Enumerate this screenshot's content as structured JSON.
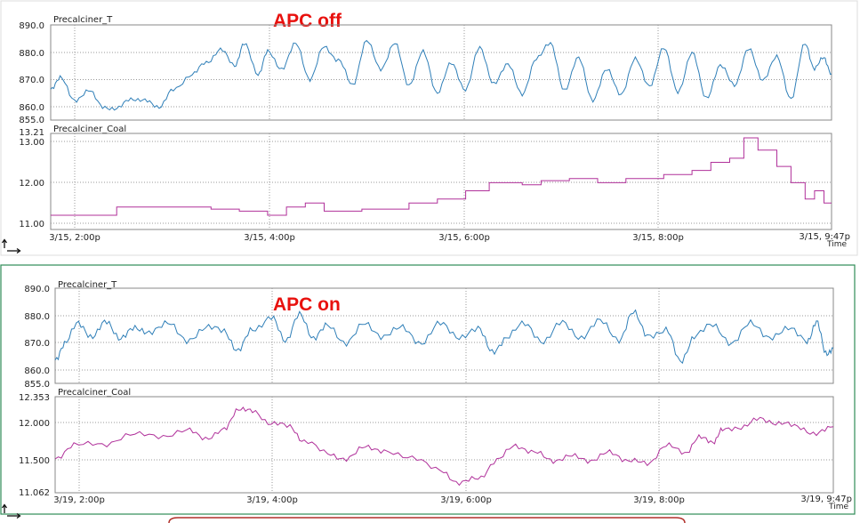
{
  "chart_data": [
    {
      "type": "line",
      "panel": "APC off",
      "banner": "APC off",
      "x_ticks": [
        "3/15, 2:00p",
        "3/15, 4:00p",
        "3/15, 6:00p",
        "3/15, 8:00p",
        "3/15, 9:47p"
      ],
      "x_axis_label": "Time",
      "x_range_hours": [
        13.5,
        21.78
      ],
      "subplots": [
        {
          "name": "Precalciner_T",
          "series_color": "#2f7fb8",
          "ylim": [
            855.0,
            890.0
          ],
          "ytick_labels": [
            "890.0",
            "880.0",
            "870.0",
            "860.0",
            "855.0"
          ],
          "ytick_values": [
            890.0,
            880.0,
            870.0,
            860.0,
            855.0
          ],
          "anchors": [
            [
              13.5,
              866
            ],
            [
              13.6,
              871
            ],
            [
              13.75,
              862
            ],
            [
              13.9,
              866
            ],
            [
              14.05,
              860
            ],
            [
              14.2,
              859
            ],
            [
              14.35,
              863
            ],
            [
              14.5,
              862
            ],
            [
              14.65,
              860
            ],
            [
              14.8,
              866
            ],
            [
              15.0,
              872
            ],
            [
              15.15,
              876
            ],
            [
              15.3,
              881
            ],
            [
              15.45,
              875
            ],
            [
              15.55,
              883
            ],
            [
              15.7,
              872
            ],
            [
              15.8,
              880
            ],
            [
              15.95,
              874
            ],
            [
              16.1,
              883
            ],
            [
              16.25,
              870
            ],
            [
              16.4,
              882
            ],
            [
              16.55,
              877
            ],
            [
              16.7,
              868
            ],
            [
              16.85,
              884
            ],
            [
              17.0,
              874
            ],
            [
              17.15,
              883
            ],
            [
              17.3,
              868
            ],
            [
              17.45,
              880
            ],
            [
              17.6,
              865
            ],
            [
              17.75,
              876
            ],
            [
              17.9,
              866
            ],
            [
              18.05,
              882
            ],
            [
              18.2,
              868
            ],
            [
              18.35,
              876
            ],
            [
              18.5,
              864
            ],
            [
              18.65,
              878
            ],
            [
              18.8,
              883
            ],
            [
              18.95,
              866
            ],
            [
              19.1,
              878
            ],
            [
              19.25,
              862
            ],
            [
              19.4,
              874
            ],
            [
              19.55,
              864
            ],
            [
              19.7,
              878
            ],
            [
              19.85,
              867
            ],
            [
              20.0,
              882
            ],
            [
              20.15,
              865
            ],
            [
              20.3,
              880
            ],
            [
              20.45,
              863
            ],
            [
              20.6,
              875
            ],
            [
              20.75,
              868
            ],
            [
              20.9,
              881
            ],
            [
              21.05,
              870
            ],
            [
              21.2,
              878
            ],
            [
              21.35,
              863
            ],
            [
              21.5,
              883
            ],
            [
              21.6,
              874
            ],
            [
              21.7,
              878
            ],
            [
              21.78,
              872
            ]
          ]
        },
        {
          "name": "Precalciner_Coal",
          "series_color": "#b0309a",
          "ylim": [
            10.85,
            13.21
          ],
          "ytick_labels": [
            "13.21",
            "13.00",
            "12.00",
            "11.00"
          ],
          "ytick_values": [
            13.21,
            13.0,
            12.0,
            11.0
          ],
          "steps": [
            [
              13.5,
              11.2
            ],
            [
              14.2,
              11.4
            ],
            [
              15.2,
              11.35
            ],
            [
              15.5,
              11.3
            ],
            [
              15.8,
              11.2
            ],
            [
              16.0,
              11.4
            ],
            [
              16.2,
              11.5
            ],
            [
              16.4,
              11.3
            ],
            [
              16.8,
              11.35
            ],
            [
              17.3,
              11.5
            ],
            [
              17.6,
              11.6
            ],
            [
              17.9,
              11.8
            ],
            [
              18.15,
              12.0
            ],
            [
              18.5,
              11.95
            ],
            [
              18.7,
              12.05
            ],
            [
              19.0,
              12.1
            ],
            [
              19.3,
              12.0
            ],
            [
              19.6,
              12.1
            ],
            [
              20.0,
              12.2
            ],
            [
              20.3,
              12.3
            ],
            [
              20.5,
              12.5
            ],
            [
              20.7,
              12.6
            ],
            [
              20.85,
              13.1
            ],
            [
              21.0,
              12.8
            ],
            [
              21.2,
              12.4
            ],
            [
              21.35,
              12.0
            ],
            [
              21.5,
              11.6
            ],
            [
              21.6,
              11.8
            ],
            [
              21.7,
              11.5
            ],
            [
              21.78,
              11.5
            ]
          ]
        }
      ]
    },
    {
      "type": "line",
      "panel": "APC on",
      "banner": "APC on",
      "x_ticks": [
        "3/19, 2:00p",
        "3/19, 4:00p",
        "3/19, 6:00p",
        "3/19, 8:00p",
        "3/19, 9:47p"
      ],
      "x_axis_label": "Time",
      "x_range_hours": [
        13.5,
        21.78
      ],
      "subplots": [
        {
          "name": "Precalciner_T",
          "series_color": "#2f7fb8",
          "ylim": [
            855.0,
            890.0
          ],
          "ytick_labels": [
            "890.0",
            "880.0",
            "870.0",
            "860.0",
            "855.0"
          ],
          "ytick_values": [
            890.0,
            880.0,
            870.0,
            860.0,
            855.0
          ],
          "anchors": [
            [
              13.5,
              863
            ],
            [
              13.6,
              870
            ],
            [
              13.75,
              877
            ],
            [
              13.9,
              872
            ],
            [
              14.05,
              878
            ],
            [
              14.2,
              871
            ],
            [
              14.35,
              876
            ],
            [
              14.5,
              873
            ],
            [
              14.7,
              878
            ],
            [
              14.9,
              870
            ],
            [
              15.1,
              876
            ],
            [
              15.3,
              874
            ],
            [
              15.45,
              867
            ],
            [
              15.6,
              875
            ],
            [
              15.8,
              879
            ],
            [
              15.95,
              871
            ],
            [
              16.1,
              880
            ],
            [
              16.25,
              872
            ],
            [
              16.4,
              876
            ],
            [
              16.6,
              870
            ],
            [
              16.8,
              877
            ],
            [
              17.0,
              872
            ],
            [
              17.2,
              876
            ],
            [
              17.4,
              869
            ],
            [
              17.6,
              878
            ],
            [
              17.8,
              871
            ],
            [
              18.0,
              876
            ],
            [
              18.15,
              866
            ],
            [
              18.3,
              872
            ],
            [
              18.5,
              877
            ],
            [
              18.7,
              870
            ],
            [
              18.9,
              878
            ],
            [
              19.1,
              871
            ],
            [
              19.3,
              879
            ],
            [
              19.5,
              870
            ],
            [
              19.65,
              882
            ],
            [
              19.8,
              872
            ],
            [
              20.0,
              875
            ],
            [
              20.15,
              863
            ],
            [
              20.3,
              872
            ],
            [
              20.5,
              877
            ],
            [
              20.7,
              869
            ],
            [
              20.9,
              878
            ],
            [
              21.1,
              871
            ],
            [
              21.3,
              876
            ],
            [
              21.5,
              870
            ],
            [
              21.6,
              878
            ],
            [
              21.7,
              866
            ],
            [
              21.78,
              868
            ]
          ]
        },
        {
          "name": "Precalciner_Coal",
          "series_color": "#b0309a",
          "ylim": [
            11.062,
            12.353
          ],
          "ytick_labels": [
            "12.353",
            "12.000",
            "11.500",
            "11.062"
          ],
          "ytick_values": [
            12.353,
            12.0,
            11.5,
            11.062
          ],
          "anchors": [
            [
              13.5,
              11.5
            ],
            [
              13.7,
              11.72
            ],
            [
              14.0,
              11.7
            ],
            [
              14.3,
              11.85
            ],
            [
              14.6,
              11.82
            ],
            [
              14.9,
              11.9
            ],
            [
              15.1,
              11.8
            ],
            [
              15.3,
              11.9
            ],
            [
              15.45,
              12.2
            ],
            [
              15.6,
              12.15
            ],
            [
              15.8,
              12.0
            ],
            [
              16.0,
              11.95
            ],
            [
              16.15,
              11.75
            ],
            [
              16.4,
              11.6
            ],
            [
              16.6,
              11.5
            ],
            [
              16.8,
              11.7
            ],
            [
              17.0,
              11.6
            ],
            [
              17.3,
              11.55
            ],
            [
              17.6,
              11.35
            ],
            [
              17.8,
              11.2
            ],
            [
              18.0,
              11.25
            ],
            [
              18.2,
              11.5
            ],
            [
              18.4,
              11.7
            ],
            [
              18.6,
              11.6
            ],
            [
              18.8,
              11.5
            ],
            [
              19.0,
              11.55
            ],
            [
              19.2,
              11.5
            ],
            [
              19.4,
              11.6
            ],
            [
              19.6,
              11.5
            ],
            [
              19.8,
              11.45
            ],
            [
              20.0,
              11.7
            ],
            [
              20.2,
              11.6
            ],
            [
              20.35,
              11.8
            ],
            [
              20.5,
              11.75
            ],
            [
              20.6,
              11.9
            ],
            [
              20.8,
              11.95
            ],
            [
              21.0,
              12.05
            ],
            [
              21.2,
              12.0
            ],
            [
              21.4,
              11.95
            ],
            [
              21.6,
              11.85
            ],
            [
              21.78,
              11.95
            ]
          ]
        }
      ]
    }
  ]
}
